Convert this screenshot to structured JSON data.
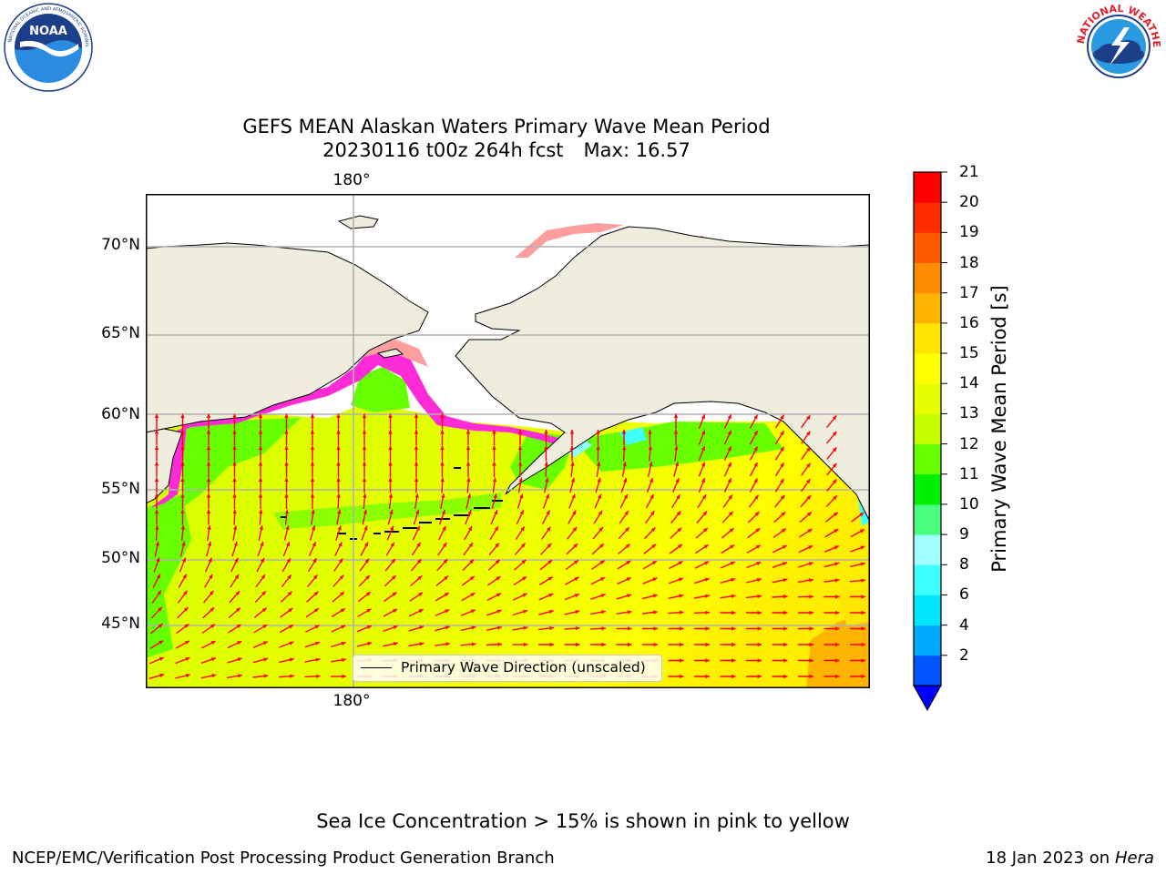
{
  "title": {
    "line1": "GEFS MEAN Alaskan Waters Primary Wave Mean Period",
    "line2_date": "20230116 t00z 264h fcst",
    "line2_max": "Max: 16.57"
  },
  "logos": {
    "noaa_text": "NOAA",
    "noaa_ring_text": "NATIONAL OCEANIC AND ATMOSPHERIC ADMINISTRATION",
    "noaa_ring_bottom": "U.S. DEPARTMENT OF COMMERCE",
    "nws_ring_text": "NATIONAL WEATHER SERVICE"
  },
  "map": {
    "lon_labels": {
      "top": "180°",
      "bottom": "180°"
    },
    "lat_labels": [
      "70°N",
      "65°N",
      "60°N",
      "55°N",
      "50°N",
      "45°N"
    ],
    "legend_label": "Primary Wave Direction (unscaled)",
    "colors": {
      "land": "#efedde",
      "grid": "#b0b0b0",
      "coast": "#000000",
      "arrow": "#ff0000",
      "ice_pink": "#ff2bd6",
      "ice_salmon": "#ff9e9e"
    }
  },
  "colorbar": {
    "title": "Primary Wave Mean Period [s]",
    "ticks": [
      "21",
      "20",
      "19",
      "18",
      "17",
      "16",
      "15",
      "14",
      "13",
      "12",
      "11",
      "10",
      "9",
      "8",
      "6",
      "4",
      "2"
    ],
    "levels": [
      {
        "color": "#0055ff"
      },
      {
        "color": "#00aaff"
      },
      {
        "color": "#00e6ff"
      },
      {
        "color": "#40ffff"
      },
      {
        "color": "#a0ffff"
      },
      {
        "color": "#4aff80"
      },
      {
        "color": "#00ee00"
      },
      {
        "color": "#66ff00"
      },
      {
        "color": "#c8ff00"
      },
      {
        "color": "#e8ff00"
      },
      {
        "color": "#ffff00"
      },
      {
        "color": "#ffe600"
      },
      {
        "color": "#ffb400"
      },
      {
        "color": "#ff8c00"
      },
      {
        "color": "#ff5a00"
      },
      {
        "color": "#ff2d00"
      },
      {
        "color": "#ff0000"
      }
    ],
    "under_color": "#0000ff"
  },
  "notes": {
    "sea_ice": "Sea Ice Concentration > 15% is shown in pink to yellow",
    "footer_left": "NCEP/EMC/Verification Post Processing Product Generation Branch",
    "footer_date": "18 Jan 2023 on",
    "footer_host": "Hera"
  }
}
